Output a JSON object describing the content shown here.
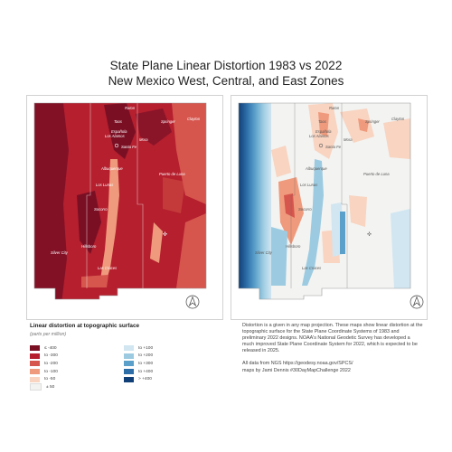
{
  "title": {
    "line1": "State Plane Linear Distortion 1983 vs 2022",
    "line2": "New Mexico West, Central, and East Zones"
  },
  "maps": {
    "map_1983": {
      "cities": [
        "Raton",
        "Taos",
        "Springer",
        "Clayton",
        "Española",
        "Los Alamos",
        "Mora",
        "Santa Fe",
        "Albuquerque",
        "Los Lunas",
        "Puerto de Luna",
        "Socorro",
        "Silver City",
        "Hillsboro",
        "Las Cruces"
      ]
    },
    "map_2022": {
      "cities": [
        "Raton",
        "Taos",
        "Springer",
        "Clayton",
        "Española",
        "Los Alamos",
        "Mora",
        "Santa Fe",
        "Albuquerque",
        "Los Lunas",
        "Puerto de Luna",
        "Socorro",
        "Silver City",
        "Hillsboro",
        "Las Cruces"
      ]
    },
    "north_arrow_icon": "north-arrow-icon",
    "colors": {
      "neg400": "#7a0f24",
      "neg300": "#b51f2e",
      "neg200": "#d6564e",
      "neg100": "#ef9a7c",
      "neg50": "#f8d4c1",
      "zero": "#f3f3f1",
      "pos100": "#d1e6f1",
      "pos200": "#9ccbe1",
      "pos300": "#5aa0ca",
      "pos400": "#2d6ea9",
      "posMax": "#103f77"
    }
  },
  "legend": {
    "title": "Linear distortion at topographic surface",
    "units": "(parts per million)",
    "left": [
      {
        "label": "≤ -400",
        "color": "#7a0f24"
      },
      {
        "label": "to -300",
        "color": "#b51f2e"
      },
      {
        "label": "to -200",
        "color": "#d6564e"
      },
      {
        "label": "to -100",
        "color": "#ef9a7c"
      },
      {
        "label": "to -50",
        "color": "#f8d4c1"
      },
      {
        "label": "± 50",
        "color": "#f3f3f1"
      }
    ],
    "right": [
      {
        "label": "to +100",
        "color": "#d1e6f1"
      },
      {
        "label": "to +200",
        "color": "#9ccbe1"
      },
      {
        "label": "to +300",
        "color": "#5aa0ca"
      },
      {
        "label": "to +400",
        "color": "#2d6ea9"
      },
      {
        "label": "> +400",
        "color": "#103f77"
      }
    ]
  },
  "info": {
    "paragraph": "Distortion is a given in any map projection. These maps show linear distortion at the topographic surface for the State Plane Coordinate Systems of 1983 and preliminary 2022 designs. NOAA's National Geodetic Survey has developed a much improved State Plane Coordinate System for 2022, which is expected to be released in 2025.",
    "credit_line1": "All data from NGS https://geodesy.noaa.gov/SPCS/",
    "credit_line2": "maps by Jami Dennis #30DayMapChallenge 2022"
  }
}
